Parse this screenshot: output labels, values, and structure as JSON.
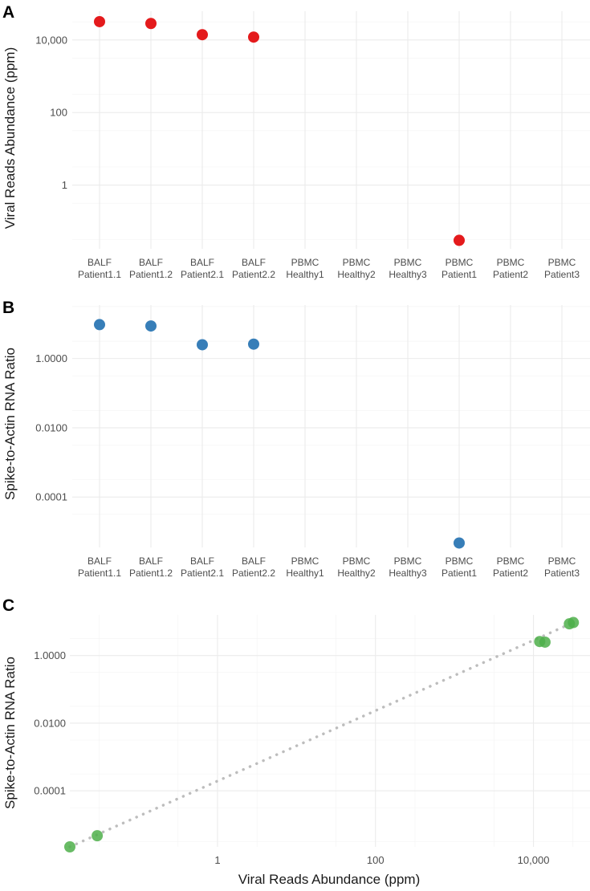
{
  "colors": {
    "panel_a": "#e41a1c",
    "panel_b": "#377eb8",
    "panel_c": "#4daf4a",
    "trend": "#bdbdbd"
  },
  "chart_data": [
    {
      "panel": "A",
      "type": "scatter",
      "xlabel": "",
      "ylabel": "Viral Reads Abundance (ppm)",
      "yscale": "log10",
      "ylim": [
        0.0175,
        62000
      ],
      "yticks": [
        {
          "value": 1,
          "label": "1"
        },
        {
          "value": 100,
          "label": "100"
        },
        {
          "value": 10000,
          "label": "10,000"
        }
      ],
      "categories": [
        {
          "line1": "BALF",
          "line2": "Patient1.1"
        },
        {
          "line1": "BALF",
          "line2": "Patient1.2"
        },
        {
          "line1": "BALF",
          "line2": "Patient2.1"
        },
        {
          "line1": "BALF",
          "line2": "Patient2.2"
        },
        {
          "line1": "PBMC",
          "line2": "Healthy1"
        },
        {
          "line1": "PBMC",
          "line2": "Healthy2"
        },
        {
          "line1": "PBMC",
          "line2": "Healthy3"
        },
        {
          "line1": "PBMC",
          "line2": "Patient1"
        },
        {
          "line1": "PBMC",
          "line2": "Patient2"
        },
        {
          "line1": "PBMC",
          "line2": "Patient3"
        }
      ],
      "points": [
        {
          "category_index": 0,
          "value": 32000
        },
        {
          "category_index": 1,
          "value": 28500
        },
        {
          "category_index": 2,
          "value": 14000
        },
        {
          "category_index": 3,
          "value": 12000
        },
        {
          "category_index": 7,
          "value": 0.03
        }
      ]
    },
    {
      "panel": "B",
      "type": "scatter",
      "xlabel": "",
      "ylabel": "Spike-to-Actin RNA Ratio",
      "yscale": "log10",
      "ylim": [
        3.5e-06,
        35
      ],
      "yticks": [
        {
          "value": 0.0001,
          "label": "0.0001"
        },
        {
          "value": 0.01,
          "label": "0.0100"
        },
        {
          "value": 1,
          "label": "1.0000"
        }
      ],
      "categories": [
        {
          "line1": "BALF",
          "line2": "Patient1.1"
        },
        {
          "line1": "BALF",
          "line2": "Patient1.2"
        },
        {
          "line1": "BALF",
          "line2": "Patient2.1"
        },
        {
          "line1": "BALF",
          "line2": "Patient2.2"
        },
        {
          "line1": "PBMC",
          "line2": "Healthy1"
        },
        {
          "line1": "PBMC",
          "line2": "Healthy2"
        },
        {
          "line1": "PBMC",
          "line2": "Healthy3"
        },
        {
          "line1": "PBMC",
          "line2": "Patient1"
        },
        {
          "line1": "PBMC",
          "line2": "Patient2"
        },
        {
          "line1": "PBMC",
          "line2": "Patient3"
        }
      ],
      "points": [
        {
          "category_index": 0,
          "value": 9.5
        },
        {
          "category_index": 1,
          "value": 8.7
        },
        {
          "category_index": 2,
          "value": 2.5
        },
        {
          "category_index": 3,
          "value": 2.6
        },
        {
          "category_index": 7,
          "value": 4.7e-06
        }
      ]
    },
    {
      "panel": "C",
      "type": "scatter",
      "xlabel": "Viral Reads Abundance (ppm)",
      "ylabel": "Spike-to-Actin RNA Ratio",
      "xscale": "log10",
      "yscale": "log10",
      "xlim": [
        0.0135,
        52000
      ],
      "ylim": [
        2.2e-06,
        16
      ],
      "xticks": [
        {
          "value": 1,
          "label": "1"
        },
        {
          "value": 100,
          "label": "100"
        },
        {
          "value": 10000,
          "label": "10,000"
        }
      ],
      "yticks": [
        {
          "value": 0.0001,
          "label": "0.0001"
        },
        {
          "value": 0.01,
          "label": "0.0100"
        },
        {
          "value": 1,
          "label": "1.0000"
        }
      ],
      "points": [
        {
          "x": 32000,
          "y": 9.5
        },
        {
          "x": 28500,
          "y": 8.7
        },
        {
          "x": 14000,
          "y": 2.5
        },
        {
          "x": 12000,
          "y": 2.6
        },
        {
          "x": 0.03,
          "y": 4.7e-06
        },
        {
          "x": 0.0135,
          "y": 2.2e-06
        }
      ],
      "trendline": {
        "style": "dotted",
        "from": {
          "x": 0.0135,
          "y": 2.2e-06
        },
        "to": {
          "x": 32000,
          "y": 9.5
        }
      }
    }
  ]
}
